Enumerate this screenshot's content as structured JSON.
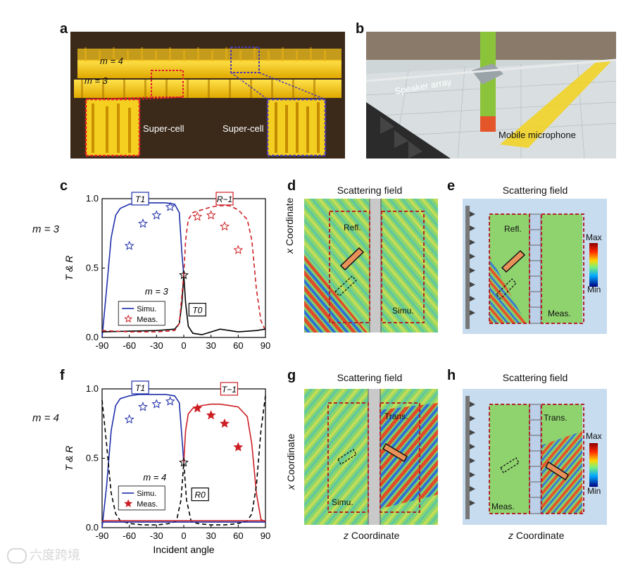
{
  "panels": {
    "a": {
      "label": "a",
      "m4": "m = 4",
      "m3": "m = 3",
      "supercell_left": "Super-cell",
      "supercell_right": "Super-cell"
    },
    "b": {
      "label": "b",
      "speaker": "Speaker array",
      "microphone": "Mobile microphone"
    },
    "c": {
      "label": "c"
    },
    "d": {
      "label": "d",
      "title": "Scattering field",
      "xaxis": "x Coordinate",
      "refl": "Refl.",
      "simu": "Simu."
    },
    "e": {
      "label": "e",
      "title": "Scattering field",
      "refl": "Refl.",
      "meas": "Meas.",
      "max": "Max",
      "min": "Min"
    },
    "f": {
      "label": "f"
    },
    "g": {
      "label": "g",
      "title": "Scattering field",
      "xaxis": "x Coordinate",
      "zaxis": "z Coordinate",
      "trans": "Trans.",
      "simu": "Simu."
    },
    "h": {
      "label": "h",
      "title": "Scattering field",
      "zaxis": "z Coordinate",
      "trans": "Trans.",
      "meas": "Meas.",
      "max": "Max",
      "min": "Min"
    }
  },
  "row_labels": {
    "top": "m = 3",
    "bottom": "m = 4"
  },
  "watermark": "六度跨境",
  "colors": {
    "blue": "#1f2fa8",
    "red": "#cc1f24",
    "black": "#000000",
    "field_bg": "#7ed36a",
    "box": "#b2262c"
  },
  "chart_data": [
    {
      "type": "line",
      "panel": "c",
      "ylabel": "T & R",
      "xlabel": "",
      "xlim": [
        -90,
        90
      ],
      "ylim": [
        0,
        1
      ],
      "xticks": [
        "-90",
        "-60",
        "-30",
        "0",
        "30",
        "60",
        "90"
      ],
      "yticks": [
        "0.0",
        "0.5",
        "1.0"
      ],
      "curve_labels": [
        "T1",
        "R−1",
        "T0"
      ],
      "annotation": "m = 3",
      "legend": [
        "Simu.",
        "Meas."
      ],
      "series": [
        {
          "name": "T1",
          "style": "solid",
          "color": "#1f2fa8",
          "x": [
            -90,
            -85,
            -80,
            -75,
            -70,
            -60,
            -50,
            -40,
            -30,
            -20,
            -10,
            -5,
            -2,
            0
          ],
          "y": [
            0.0,
            0.35,
            0.72,
            0.88,
            0.93,
            0.96,
            0.97,
            0.97,
            0.97,
            0.97,
            0.96,
            0.9,
            0.6,
            0.45
          ]
        },
        {
          "name": "R-1",
          "style": "dashed",
          "color": "#cc1f24",
          "x": [
            0,
            2,
            5,
            10,
            20,
            30,
            40,
            50,
            60,
            70,
            75,
            80,
            85,
            90
          ],
          "y": [
            0.45,
            0.7,
            0.85,
            0.9,
            0.92,
            0.94,
            0.95,
            0.95,
            0.92,
            0.85,
            0.7,
            0.35,
            0.12,
            0.05
          ]
        },
        {
          "name": "T0",
          "style": "solid",
          "color": "#000000",
          "x": [
            -90,
            -60,
            -30,
            -10,
            -5,
            -2,
            0,
            2,
            5,
            10,
            20,
            40,
            60,
            80,
            90
          ],
          "y": [
            0.04,
            0.045,
            0.05,
            0.06,
            0.1,
            0.25,
            0.45,
            0.25,
            0.08,
            0.03,
            0.02,
            0.06,
            0.04,
            0.05,
            0.06
          ]
        },
        {
          "name": "R-1 low",
          "style": "dashed",
          "color": "#cc1f24",
          "x": [
            -90,
            -60,
            -30,
            -10,
            -5,
            0
          ],
          "y": [
            0.05,
            0.04,
            0.04,
            0.05,
            0.1,
            0.45
          ]
        }
      ],
      "measured": [
        {
          "name": "T1 meas.",
          "color": "#1f2fa8",
          "filled": false,
          "x": [
            -60,
            -45,
            -30,
            -15
          ],
          "y": [
            0.66,
            0.82,
            0.88,
            0.94
          ]
        },
        {
          "name": "R-1 meas.",
          "color": "#cc1f24",
          "filled": false,
          "x": [
            15,
            30,
            45,
            60
          ],
          "y": [
            0.87,
            0.88,
            0.8,
            0.63
          ]
        },
        {
          "name": "T0 meas.",
          "color": "#000000",
          "filled": false,
          "x": [
            0
          ],
          "y": [
            0.45
          ]
        }
      ]
    },
    {
      "type": "line",
      "panel": "f",
      "ylabel": "T & R",
      "xlabel": "Incident angle",
      "xlim": [
        -90,
        90
      ],
      "ylim": [
        0,
        1
      ],
      "xticks": [
        "-90",
        "-60",
        "-30",
        "0",
        "30",
        "60",
        "90"
      ],
      "yticks": [
        "0.0",
        "0.5",
        "1.0"
      ],
      "curve_labels": [
        "T1",
        "T−1",
        "R0"
      ],
      "annotation": "m = 4",
      "legend": [
        "Simu.",
        "Meas."
      ],
      "series": [
        {
          "name": "T1",
          "style": "solid",
          "color": "#1f2fa8",
          "x": [
            -90,
            -85,
            -80,
            -75,
            -70,
            -60,
            -50,
            -40,
            -30,
            -20,
            -10,
            -5,
            -2,
            0
          ],
          "y": [
            0.0,
            0.3,
            0.7,
            0.88,
            0.93,
            0.95,
            0.96,
            0.96,
            0.96,
            0.96,
            0.95,
            0.9,
            0.65,
            0.47
          ]
        },
        {
          "name": "T-1",
          "style": "solid",
          "color": "#cc1f24",
          "x": [
            0,
            2,
            5,
            10,
            20,
            30,
            40,
            50,
            60,
            70,
            75,
            80,
            85,
            90
          ],
          "y": [
            0.47,
            0.7,
            0.82,
            0.86,
            0.88,
            0.89,
            0.89,
            0.88,
            0.87,
            0.8,
            0.6,
            0.25,
            0.06,
            0.04
          ]
        },
        {
          "name": "R0",
          "style": "dashed",
          "color": "#000000",
          "x": [
            -90,
            -85,
            -80,
            -75,
            -70,
            -60,
            -45,
            -30,
            -15,
            -8,
            -3,
            0,
            3,
            8,
            15,
            30,
            45,
            60,
            70,
            75,
            80,
            85,
            90
          ],
          "y": [
            0.92,
            0.6,
            0.25,
            0.1,
            0.05,
            0.03,
            0.02,
            0.02,
            0.03,
            0.05,
            0.2,
            0.47,
            0.2,
            0.05,
            0.03,
            0.02,
            0.02,
            0.03,
            0.05,
            0.1,
            0.3,
            0.7,
            0.95
          ]
        },
        {
          "name": "baseline",
          "style": "solid",
          "color": "#cc1f24",
          "x": [
            -90,
            90
          ],
          "y": [
            0.05,
            0.05
          ]
        },
        {
          "name": "baseline blue",
          "style": "solid",
          "color": "#1f2fa8",
          "x": [
            -90,
            90
          ],
          "y": [
            0.04,
            0.04
          ]
        }
      ],
      "measured": [
        {
          "name": "T1 meas.",
          "color": "#1f2fa8",
          "filled": false,
          "x": [
            -60,
            -45,
            -30,
            -15
          ],
          "y": [
            0.78,
            0.87,
            0.89,
            0.91
          ]
        },
        {
          "name": "T-1 meas.",
          "color": "#cc1f24",
          "filled": true,
          "x": [
            15,
            30,
            45,
            60
          ],
          "y": [
            0.86,
            0.81,
            0.75,
            0.58
          ]
        },
        {
          "name": "R0 meas.",
          "color": "#000000",
          "filled": false,
          "x": [
            0
          ],
          "y": [
            0.47
          ]
        }
      ]
    }
  ]
}
